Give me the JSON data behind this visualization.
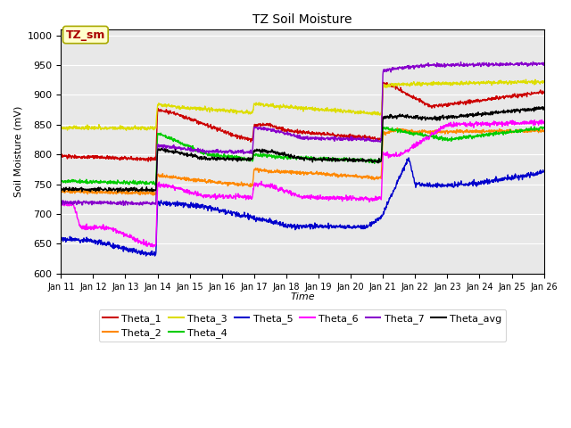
{
  "title": "TZ Soil Moisture",
  "ylabel": "Soil Moisture (mV)",
  "xlabel": "Time",
  "ylim": [
    600,
    1010
  ],
  "yticks": [
    600,
    650,
    700,
    750,
    800,
    850,
    900,
    950,
    1000
  ],
  "xtick_labels": [
    "Jan 11",
    "Jan 12",
    "Jan 13",
    "Jan 14",
    "Jan 15",
    "Jan 16",
    "Jan 17",
    "Jan 18",
    "Jan 19",
    "Jan 20",
    "Jan 21",
    "Jan 22",
    "Jan 23",
    "Jan 24",
    "Jan 25",
    "Jan 26"
  ],
  "legend_label": "TZ_sm",
  "colors": {
    "Theta_1": "#cc0000",
    "Theta_2": "#ff8800",
    "Theta_3": "#dddd00",
    "Theta_4": "#00cc00",
    "Theta_5": "#0000cc",
    "Theta_6": "#ff00ff",
    "Theta_7": "#8800cc",
    "Theta_avg": "#000000"
  },
  "bg_color": "#e8e8e8",
  "legend_box_facecolor": "#ffffcc",
  "legend_box_edgecolor": "#aaaa00"
}
